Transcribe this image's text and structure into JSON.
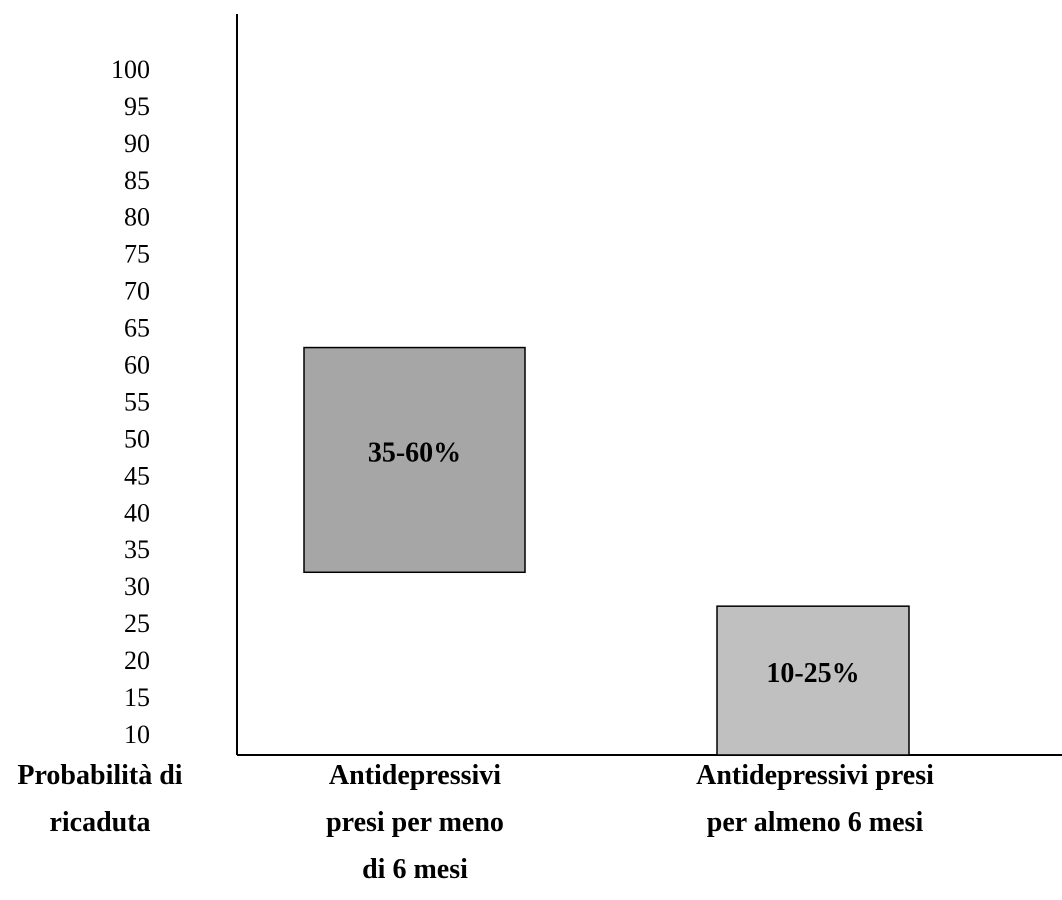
{
  "chart_data": {
    "type": "bar",
    "ylabel": "Probabilità di ricaduta",
    "ylabel_lines": [
      "Probabilità di",
      "ricaduta"
    ],
    "y_ticks": [
      100,
      95,
      90,
      85,
      80,
      75,
      70,
      65,
      60,
      55,
      50,
      45,
      40,
      35,
      30,
      25,
      20,
      15,
      10
    ],
    "ylim": [
      10,
      100
    ],
    "categories": [
      "Antidepressivi presi per meno di 6 mesi",
      "Antidepressivi presi per almeno 6 mesi"
    ],
    "category_lines": [
      [
        "Antidepressivi",
        "presi per meno",
        "di 6 mesi"
      ],
      [
        "Antidepressivi presi",
        "per almeno 6 mesi"
      ]
    ],
    "ranges": [
      {
        "low": 35,
        "high": 60,
        "label": "35-60%",
        "color": "#a6a6a6"
      },
      {
        "low": 10,
        "high": 25,
        "label": "10-25%",
        "color": "#c0c0c0"
      }
    ],
    "grid": false,
    "legend": "none"
  }
}
